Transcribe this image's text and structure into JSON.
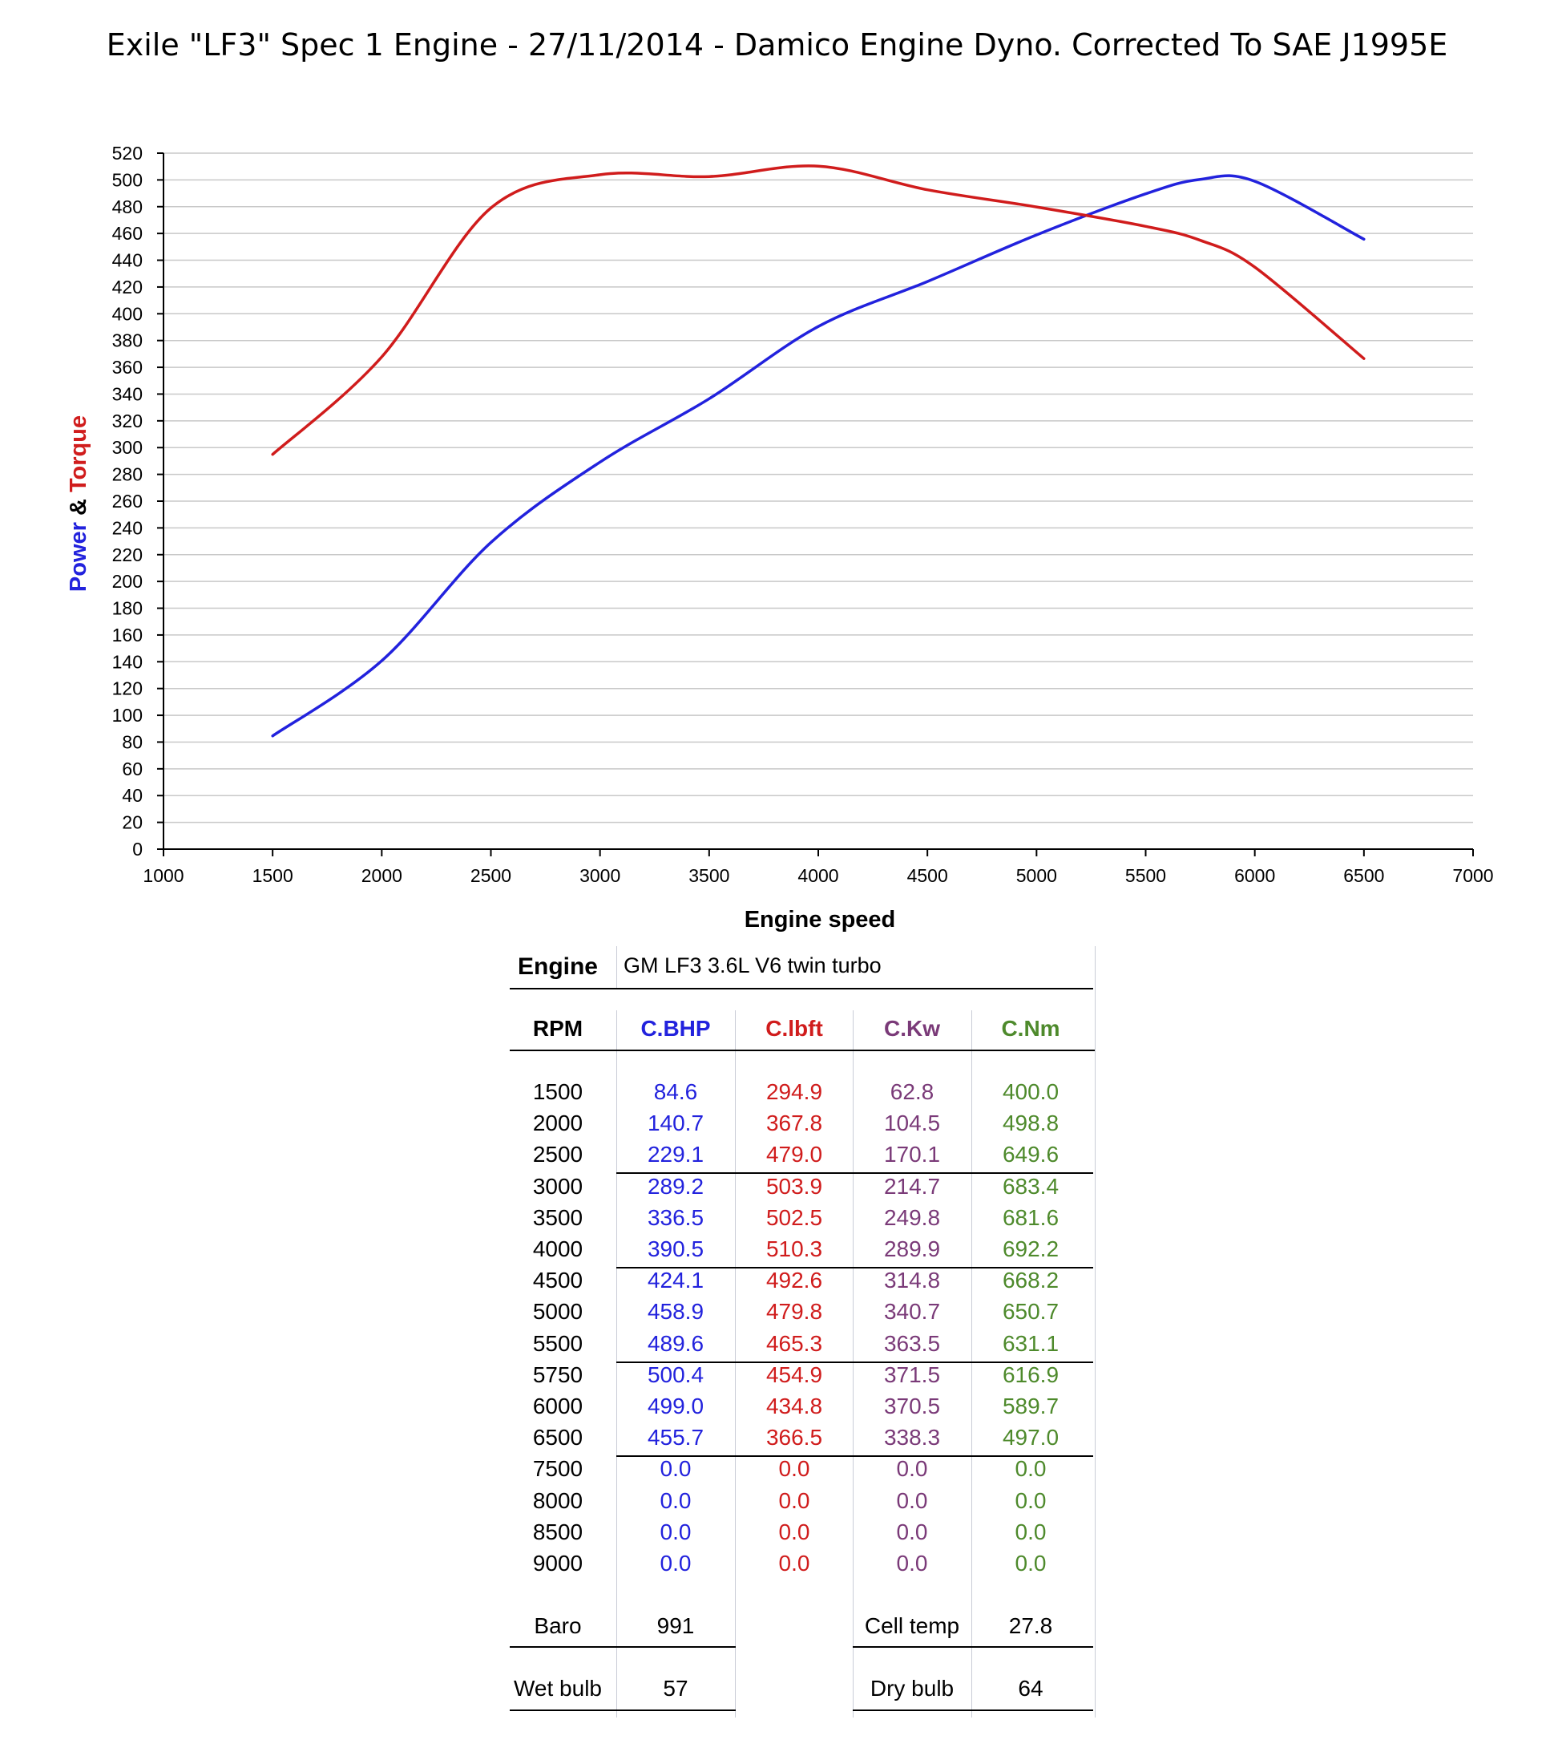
{
  "title": "Exile \"LF3\" Spec 1 Engine - 27/11/2014 - Damico Engine Dyno. Corrected To SAE J1995E",
  "colors": {
    "power": "#2222dd",
    "torque": "#d01c1c",
    "kw": "#7a3a78",
    "nm": "#4e8a2c",
    "grid": "#c8c8c8"
  },
  "chart_data": {
    "type": "line",
    "xlabel": "Engine speed",
    "ylabel_parts": [
      "Power",
      " & ",
      "Torque"
    ],
    "xlim": [
      1000,
      7000
    ],
    "ylim": [
      0,
      520
    ],
    "x_tick_step": 500,
    "y_tick_step": 20,
    "grid": "horizontal",
    "series": [
      {
        "key": "power",
        "x": [
          1500,
          2000,
          2500,
          3000,
          3500,
          4000,
          4500,
          5000,
          5500,
          5750,
          6000,
          6500
        ],
        "values": [
          84.6,
          140.7,
          229.1,
          289.2,
          336.5,
          390.5,
          424.1,
          458.9,
          489.6,
          500.4,
          499.0,
          455.7
        ]
      },
      {
        "key": "torque",
        "x": [
          1500,
          2000,
          2500,
          3000,
          3500,
          4000,
          4500,
          5000,
          5500,
          5750,
          6000,
          6500
        ],
        "values": [
          294.9,
          367.8,
          479.0,
          503.9,
          502.5,
          510.3,
          492.6,
          479.8,
          465.3,
          454.9,
          434.8,
          366.5
        ]
      }
    ]
  },
  "table": {
    "engine_label": "Engine",
    "engine_value": "GM LF3 3.6L V6 twin turbo",
    "headers": [
      "RPM",
      "C.BHP",
      "C.lbft",
      "C.Kw",
      "C.Nm"
    ],
    "rows": [
      [
        "1500",
        "84.6",
        "294.9",
        "62.8",
        "400.0"
      ],
      [
        "2000",
        "140.7",
        "367.8",
        "104.5",
        "498.8"
      ],
      [
        "2500",
        "229.1",
        "479.0",
        "170.1",
        "649.6"
      ],
      [
        "3000",
        "289.2",
        "503.9",
        "214.7",
        "683.4"
      ],
      [
        "3500",
        "336.5",
        "502.5",
        "249.8",
        "681.6"
      ],
      [
        "4000",
        "390.5",
        "510.3",
        "289.9",
        "692.2"
      ],
      [
        "4500",
        "424.1",
        "492.6",
        "314.8",
        "668.2"
      ],
      [
        "5000",
        "458.9",
        "479.8",
        "340.7",
        "650.7"
      ],
      [
        "5500",
        "489.6",
        "465.3",
        "363.5",
        "631.1"
      ],
      [
        "5750",
        "500.4",
        "454.9",
        "371.5",
        "616.9"
      ],
      [
        "6000",
        "499.0",
        "434.8",
        "370.5",
        "589.7"
      ],
      [
        "6500",
        "455.7",
        "366.5",
        "338.3",
        "497.0"
      ],
      [
        "7500",
        "0.0",
        "0.0",
        "0.0",
        "0.0"
      ],
      [
        "8000",
        "0.0",
        "0.0",
        "0.0",
        "0.0"
      ],
      [
        "8500",
        "0.0",
        "0.0",
        "0.0",
        "0.0"
      ],
      [
        "9000",
        "0.0",
        "0.0",
        "0.0",
        "0.0"
      ]
    ],
    "conditions": {
      "baro_label": "Baro",
      "baro_value": "991",
      "cell_temp_label": "Cell temp",
      "cell_temp_value": "27.8",
      "wet_bulb_label": "Wet bulb",
      "wet_bulb_value": "57",
      "dry_bulb_label": "Dry bulb",
      "dry_bulb_value": "64"
    }
  }
}
